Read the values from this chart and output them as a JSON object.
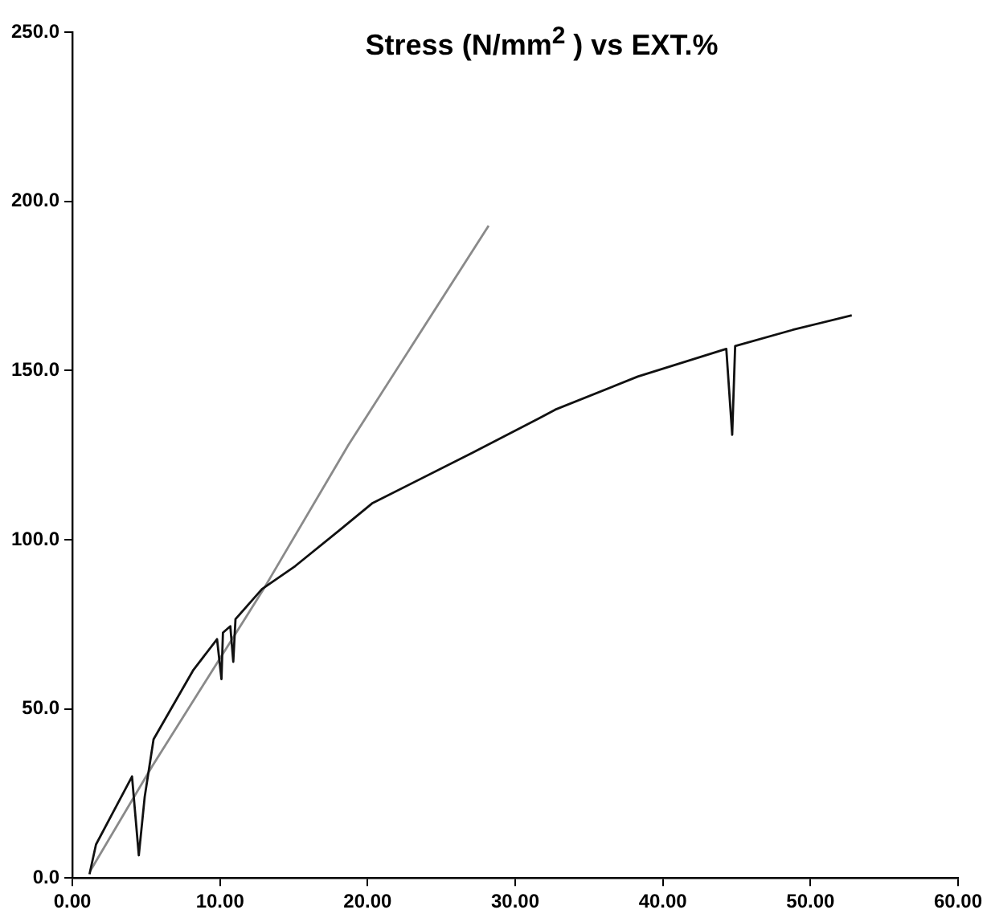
{
  "chart_data": {
    "type": "line",
    "title": "Stress (N/mm$^{2}$ ) vs EXT.%",
    "series": [
      {
        "color": "#111111",
        "x": [
          1.16,
          1.6,
          4.04,
          4.5,
          4.9,
          5.5,
          8.17,
          9.8,
          10.1,
          10.2,
          10.7,
          10.9,
          11.05,
          12.85,
          15.1,
          18.1,
          20.3,
          27.1,
          31.6,
          32.7,
          38.3,
          44.3,
          44.7,
          44.9,
          48.8,
          52.8
        ],
        "values": [
          1.1,
          9.9,
          30,
          6.7,
          24,
          41,
          61.3,
          70.6,
          58.8,
          72.5,
          74.4,
          63.9,
          76.5,
          85.4,
          92.2,
          102.8,
          110.7,
          125.7,
          135.8,
          138.4,
          148.2,
          156.4,
          131,
          157.2,
          162,
          166.3
        ]
      },
      {
        "color": "#8a8a8a",
        "x": [
          1.2,
          5.4,
          12.9,
          18.7,
          28.2
        ],
        "values": [
          2,
          33,
          85,
          128,
          192.8
        ]
      }
    ],
    "xlim": [
      0,
      60
    ],
    "xticks": [
      {
        "value": 0,
        "label": "0.00"
      },
      {
        "value": 10,
        "label": "10.00"
      },
      {
        "value": 20,
        "label": "20.00"
      },
      {
        "value": 30,
        "label": "30.00"
      },
      {
        "value": 40,
        "label": "40.00"
      },
      {
        "value": 50,
        "label": "50.00"
      },
      {
        "value": 60,
        "label": "60.00"
      }
    ],
    "ylim": [
      0,
      250
    ],
    "yticks": [
      {
        "value": 0,
        "label": "0.0"
      },
      {
        "value": 50,
        "label": "50.0"
      },
      {
        "value": 100,
        "label": "100.0"
      },
      {
        "value": 150,
        "label": "150.0"
      },
      {
        "value": 200,
        "label": "200.0"
      },
      {
        "value": 250,
        "label": "250.0"
      }
    ],
    "grid": false,
    "legend": false,
    "marker": "none",
    "line_style": "solid"
  }
}
